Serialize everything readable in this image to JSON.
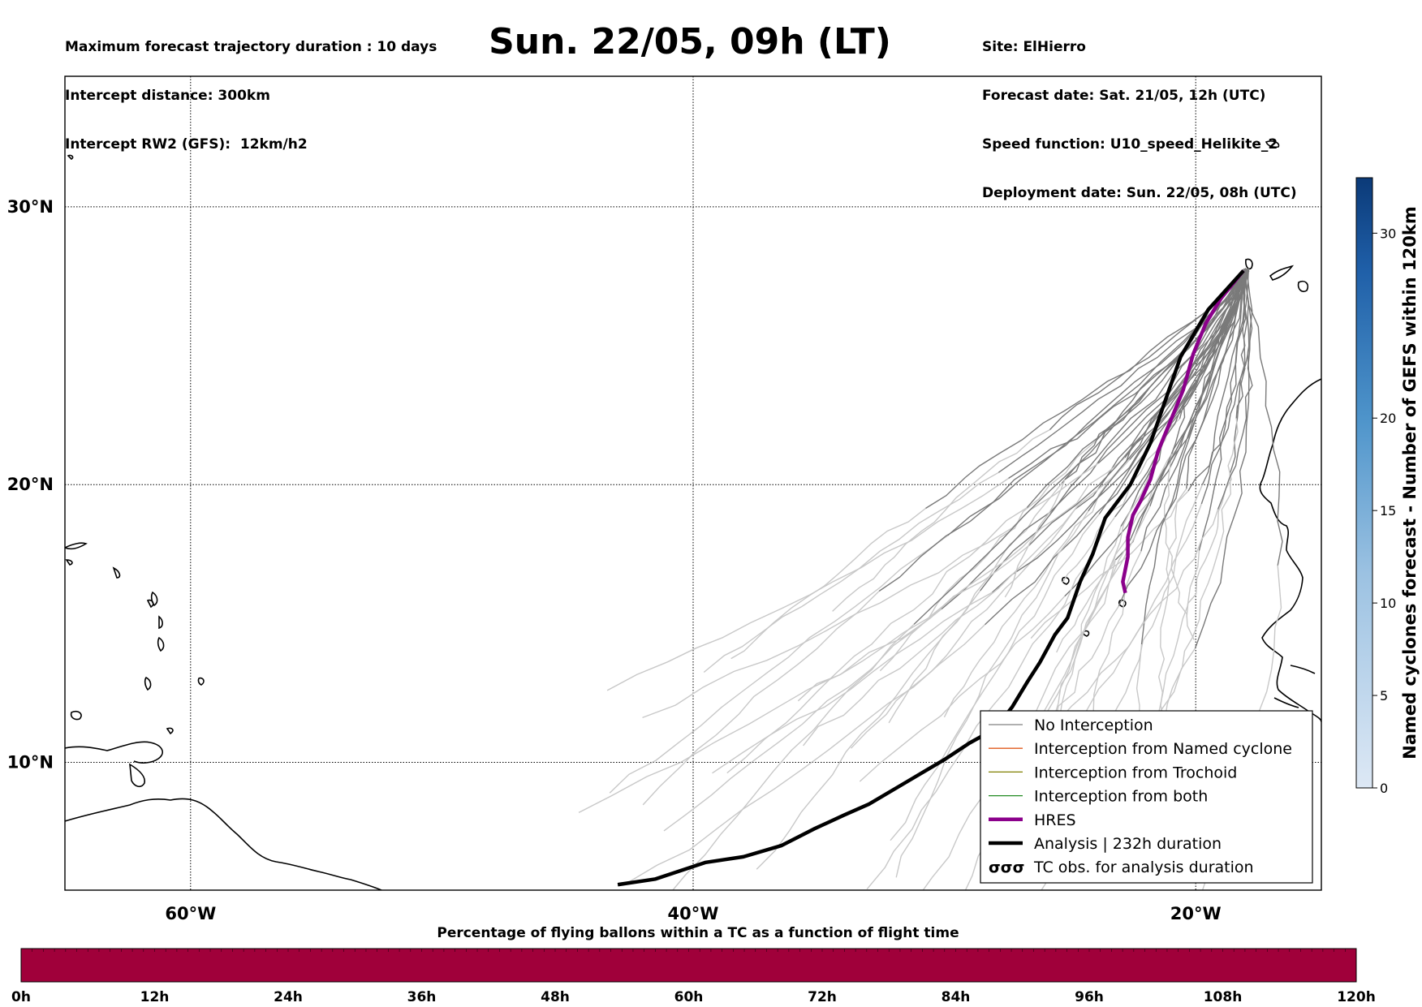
{
  "header": {
    "left_lines": [
      "Maximum forecast trajectory duration : 10 days",
      "Intercept distance: 300km",
      "Intercept RW2 (GFS):  12km/h2"
    ],
    "title": "Sun. 22/05, 09h (LT)",
    "right_lines": [
      "Site: ElHierro",
      "Forecast date: Sat. 21/05, 12h (UTC)",
      "Speed function: U10_speed_Helikite_2",
      "Deployment date: Sun. 22/05, 08h (UTC)"
    ]
  },
  "map": {
    "lat_labels": [
      "30°N",
      "20°N",
      "10°N"
    ],
    "lon_labels": [
      "60°W",
      "40°W",
      "20°W"
    ],
    "lat_values": [
      30,
      20,
      10
    ],
    "lon_values": [
      -60,
      -40,
      -20
    ],
    "extent": {
      "lon_min": -65,
      "lon_max": -15,
      "lat_min": 5.4,
      "lat_max": 34.7
    },
    "site": {
      "name": "ElHierro",
      "lon": -18.0,
      "lat": 27.7
    }
  },
  "legend": {
    "items": [
      {
        "label": "No Interception",
        "color": "#808080",
        "style": "thin"
      },
      {
        "label": "Interception from Named cyclone",
        "color": "#e05a1c",
        "style": "thin"
      },
      {
        "label": "Interception from Trochoid",
        "color": "#808000",
        "style": "thin"
      },
      {
        "label": "Interception from both",
        "color": "#228b22",
        "style": "thin"
      },
      {
        "label": "HRES",
        "color": "#8b008b",
        "style": "thick"
      },
      {
        "label": "Analysis | 232h duration",
        "color": "#000000",
        "style": "thick"
      },
      {
        "label": "TC obs. for analysis duration",
        "color": "#000000",
        "style": "symbol"
      }
    ]
  },
  "colorbar": {
    "label": "Named cyclones forecast - Number of GEFS within 120km",
    "ticks": [
      "0",
      "5",
      "10",
      "15",
      "20",
      "30"
    ],
    "tick_values": [
      0,
      5,
      10,
      15,
      20,
      30
    ],
    "max": 33,
    "color_low": "#dde8f5",
    "color_high": "#0b3a78"
  },
  "percentage_bar": {
    "title": "Percentage of flying ballons within a TC as a function of flight time",
    "color": "#a0003a",
    "ticks": [
      "0h",
      "12h",
      "24h",
      "36h",
      "48h",
      "60h",
      "72h",
      "84h",
      "96h",
      "108h",
      "120h"
    ],
    "segments": 120
  },
  "tracks": {
    "analysis": [
      [
        -18.1,
        27.7
      ],
      [
        -19.5,
        26.3
      ],
      [
        -20.6,
        24.6
      ],
      [
        -21.3,
        22.8
      ],
      [
        -21.8,
        21.5
      ],
      [
        -22.6,
        20.0
      ],
      [
        -23.6,
        18.8
      ],
      [
        -24.1,
        17.5
      ],
      [
        -24.6,
        16.5
      ],
      [
        -25.1,
        15.2
      ],
      [
        -25.6,
        14.6
      ],
      [
        -26.2,
        13.6
      ],
      [
        -26.7,
        12.9
      ],
      [
        -27.3,
        12.0
      ],
      [
        -28.0,
        11.2
      ],
      [
        -29.0,
        10.7
      ],
      [
        -30.0,
        10.1
      ],
      [
        -31.5,
        9.3
      ],
      [
        -33.0,
        8.5
      ],
      [
        -34.0,
        8.1
      ],
      [
        -35.2,
        7.6
      ],
      [
        -36.5,
        7.0
      ],
      [
        -38.0,
        6.6
      ],
      [
        -39.5,
        6.4
      ],
      [
        -40.5,
        6.1
      ],
      [
        -41.5,
        5.8
      ],
      [
        -43.0,
        5.6
      ]
    ],
    "hres": [
      [
        -18.1,
        27.7
      ],
      [
        -19.0,
        26.7
      ],
      [
        -19.6,
        25.8
      ],
      [
        -20.1,
        24.7
      ],
      [
        -20.5,
        23.4
      ],
      [
        -21.0,
        22.3
      ],
      [
        -21.5,
        21.2
      ],
      [
        -21.8,
        20.2
      ],
      [
        -22.2,
        19.4
      ],
      [
        -22.5,
        18.9
      ],
      [
        -22.7,
        18.1
      ],
      [
        -22.7,
        17.4
      ],
      [
        -22.9,
        16.5
      ],
      [
        -22.8,
        16.1
      ]
    ]
  }
}
